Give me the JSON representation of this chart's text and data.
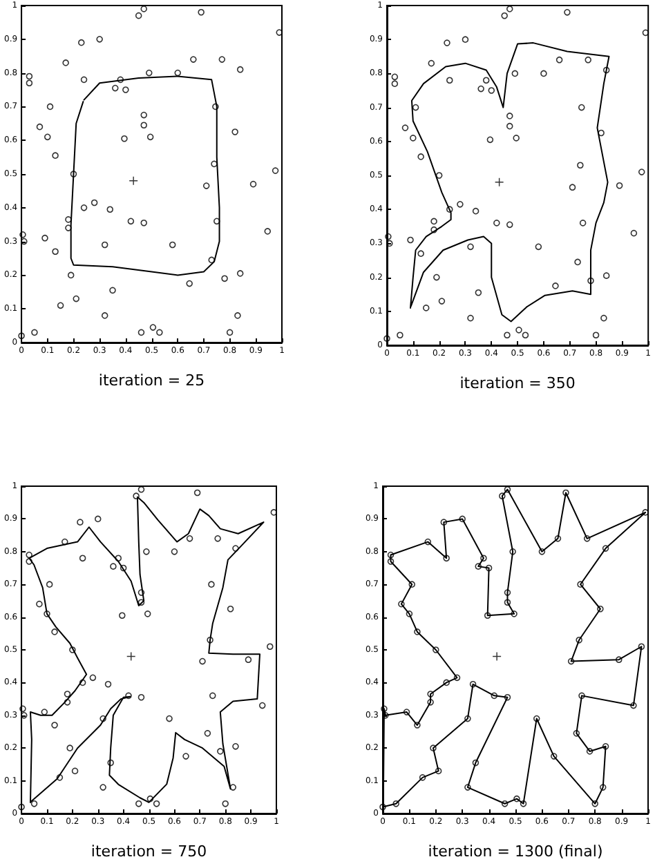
{
  "chart_data": [
    {
      "type": "scatter",
      "xlabel": "iteration = 25",
      "xlim": [
        0,
        1
      ],
      "ylim": [
        0,
        1
      ],
      "xticks": [
        0,
        0.1,
        0.2,
        0.3,
        0.4,
        0.5,
        0.6,
        0.7,
        0.8,
        0.9,
        1
      ],
      "yticks": [
        0,
        0.1,
        0.2,
        0.3,
        0.4,
        0.5,
        0.6,
        0.7,
        0.8,
        0.9,
        1
      ],
      "grid": false,
      "marker": "circle",
      "series": [
        {
          "type": "scatter",
          "color": "#000000",
          "x": [
            0.0,
            0.05,
            0.15,
            0.21,
            0.19,
            0.32,
            0.34,
            0.42,
            0.47,
            0.35,
            0.32,
            0.46,
            0.505,
            0.53,
            0.58,
            0.645,
            0.8,
            0.83,
            0.84,
            0.78,
            0.73,
            0.75,
            0.945,
            0.975,
            0.89,
            0.71,
            0.74,
            0.82,
            0.745,
            0.84,
            0.99,
            0.77,
            0.69,
            0.66,
            0.6,
            0.47,
            0.45,
            0.49,
            0.47,
            0.47,
            0.495,
            0.395,
            0.4,
            0.36,
            0.38,
            0.3,
            0.23,
            0.24,
            0.17,
            0.03,
            0.03,
            0.11,
            0.07,
            0.1,
            0.13,
            0.2,
            0.28,
            0.24,
            0.18,
            0.18,
            0.13,
            0.09,
            0.01,
            0.005
          ],
          "values": [
            0.02,
            0.03,
            0.11,
            0.13,
            0.2,
            0.29,
            0.395,
            0.36,
            0.355,
            0.155,
            0.08,
            0.03,
            0.045,
            0.03,
            0.29,
            0.175,
            0.03,
            0.08,
            0.205,
            0.19,
            0.245,
            0.36,
            0.33,
            0.51,
            0.47,
            0.465,
            0.53,
            0.625,
            0.7,
            0.81,
            0.92,
            0.84,
            0.98,
            0.84,
            0.8,
            0.99,
            0.97,
            0.8,
            0.675,
            0.645,
            0.61,
            0.605,
            0.75,
            0.755,
            0.78,
            0.9,
            0.89,
            0.78,
            0.83,
            0.79,
            0.77,
            0.7,
            0.64,
            0.61,
            0.555,
            0.5,
            0.415,
            0.4,
            0.365,
            0.34,
            0.27,
            0.31,
            0.3,
            0.32
          ]
        },
        {
          "type": "scatter",
          "marker": "cross",
          "color": "#000000",
          "x": [
            0.43
          ],
          "values": [
            0.48
          ]
        },
        {
          "type": "line",
          "marker": "none",
          "color": "#000000",
          "x": [
            0.24,
            0.3,
            0.45,
            0.6,
            0.73,
            0.75,
            0.75,
            0.76,
            0.76,
            0.74,
            0.7,
            0.6,
            0.5,
            0.35,
            0.2,
            0.19,
            0.19,
            0.2,
            0.21,
            0.237
          ],
          "values": [
            0.72,
            0.77,
            0.785,
            0.79,
            0.78,
            0.7,
            0.55,
            0.4,
            0.3,
            0.24,
            0.21,
            0.2,
            0.21,
            0.225,
            0.23,
            0.25,
            0.35,
            0.5,
            0.65,
            0.715
          ]
        }
      ]
    },
    {
      "type": "scatter",
      "xlabel": "iteration = 350",
      "xlim": [
        0,
        1
      ],
      "ylim": [
        0,
        1
      ],
      "xticks": [
        0,
        0.1,
        0.2,
        0.3,
        0.4,
        0.5,
        0.6,
        0.7,
        0.8,
        0.9,
        1
      ],
      "yticks": [
        0,
        0.1,
        0.2,
        0.3,
        0.4,
        0.5,
        0.6,
        0.7,
        0.8,
        0.9,
        1
      ],
      "grid": false,
      "marker": "circle",
      "series": [
        {
          "type": "scatter",
          "color": "#000000",
          "x": [
            0.0,
            0.05,
            0.15,
            0.21,
            0.19,
            0.32,
            0.34,
            0.42,
            0.47,
            0.35,
            0.32,
            0.46,
            0.505,
            0.53,
            0.58,
            0.645,
            0.8,
            0.83,
            0.84,
            0.78,
            0.73,
            0.75,
            0.945,
            0.975,
            0.89,
            0.71,
            0.74,
            0.82,
            0.745,
            0.84,
            0.99,
            0.77,
            0.69,
            0.66,
            0.6,
            0.47,
            0.45,
            0.49,
            0.47,
            0.47,
            0.495,
            0.395,
            0.4,
            0.36,
            0.38,
            0.3,
            0.23,
            0.24,
            0.17,
            0.03,
            0.03,
            0.11,
            0.07,
            0.1,
            0.13,
            0.2,
            0.28,
            0.24,
            0.18,
            0.18,
            0.13,
            0.09,
            0.01,
            0.005
          ],
          "values": [
            0.02,
            0.03,
            0.11,
            0.13,
            0.2,
            0.29,
            0.395,
            0.36,
            0.355,
            0.155,
            0.08,
            0.03,
            0.045,
            0.03,
            0.29,
            0.175,
            0.03,
            0.08,
            0.205,
            0.19,
            0.245,
            0.36,
            0.33,
            0.51,
            0.47,
            0.465,
            0.53,
            0.625,
            0.7,
            0.81,
            0.92,
            0.84,
            0.98,
            0.84,
            0.8,
            0.99,
            0.97,
            0.8,
            0.675,
            0.645,
            0.61,
            0.605,
            0.75,
            0.755,
            0.78,
            0.9,
            0.89,
            0.78,
            0.83,
            0.79,
            0.77,
            0.7,
            0.64,
            0.61,
            0.555,
            0.5,
            0.415,
            0.4,
            0.365,
            0.34,
            0.27,
            0.31,
            0.3,
            0.32
          ]
        },
        {
          "type": "scatter",
          "marker": "cross",
          "color": "#000000",
          "x": [
            0.43
          ],
          "values": [
            0.48
          ]
        },
        {
          "type": "line",
          "marker": "none",
          "color": "#000000",
          "x": [
            0.09,
            0.1,
            0.11,
            0.15,
            0.21,
            0.245,
            0.245,
            0.21,
            0.155,
            0.1,
            0.095,
            0.14,
            0.225,
            0.3,
            0.38,
            0.42,
            0.445,
            0.46,
            0.5,
            0.56,
            0.69,
            0.85,
            0.83,
            0.805,
            0.83,
            0.845,
            0.83,
            0.8,
            0.78,
            0.78,
            0.71,
            0.605,
            0.535,
            0.475,
            0.44,
            0.4,
            0.4,
            0.37,
            0.31,
            0.215,
            0.14,
            0.092
          ],
          "values": [
            0.11,
            0.2,
            0.28,
            0.32,
            0.35,
            0.37,
            0.39,
            0.45,
            0.57,
            0.66,
            0.72,
            0.77,
            0.82,
            0.83,
            0.81,
            0.76,
            0.7,
            0.8,
            0.887,
            0.89,
            0.865,
            0.85,
            0.77,
            0.64,
            0.54,
            0.48,
            0.42,
            0.36,
            0.28,
            0.15,
            0.16,
            0.147,
            0.113,
            0.07,
            0.09,
            0.2,
            0.3,
            0.32,
            0.31,
            0.28,
            0.215,
            0.115
          ]
        }
      ]
    },
    {
      "type": "scatter",
      "xlabel": "iteration = 750",
      "xlim": [
        0,
        1
      ],
      "ylim": [
        0,
        1
      ],
      "xticks": [
        0,
        0.1,
        0.2,
        0.3,
        0.4,
        0.5,
        0.6,
        0.7,
        0.8,
        0.9,
        1
      ],
      "yticks": [
        0,
        0.1,
        0.2,
        0.3,
        0.4,
        0.5,
        0.6,
        0.7,
        0.8,
        0.9,
        1
      ],
      "grid": false,
      "marker": "circle",
      "series": [
        {
          "type": "scatter",
          "color": "#000000",
          "x": [
            0.0,
            0.05,
            0.15,
            0.21,
            0.19,
            0.32,
            0.34,
            0.42,
            0.47,
            0.35,
            0.32,
            0.46,
            0.505,
            0.53,
            0.58,
            0.645,
            0.8,
            0.83,
            0.84,
            0.78,
            0.73,
            0.75,
            0.945,
            0.975,
            0.89,
            0.71,
            0.74,
            0.82,
            0.745,
            0.84,
            0.99,
            0.77,
            0.69,
            0.66,
            0.6,
            0.47,
            0.45,
            0.49,
            0.47,
            0.47,
            0.495,
            0.395,
            0.4,
            0.36,
            0.38,
            0.3,
            0.23,
            0.24,
            0.17,
            0.03,
            0.03,
            0.11,
            0.07,
            0.1,
            0.13,
            0.2,
            0.28,
            0.24,
            0.18,
            0.18,
            0.13,
            0.09,
            0.01,
            0.005
          ],
          "values": [
            0.02,
            0.03,
            0.11,
            0.13,
            0.2,
            0.29,
            0.395,
            0.36,
            0.355,
            0.155,
            0.08,
            0.03,
            0.045,
            0.03,
            0.29,
            0.175,
            0.03,
            0.08,
            0.205,
            0.19,
            0.245,
            0.36,
            0.33,
            0.51,
            0.47,
            0.465,
            0.53,
            0.625,
            0.7,
            0.81,
            0.92,
            0.84,
            0.98,
            0.84,
            0.8,
            0.99,
            0.97,
            0.8,
            0.675,
            0.645,
            0.61,
            0.605,
            0.75,
            0.755,
            0.78,
            0.9,
            0.89,
            0.78,
            0.83,
            0.79,
            0.77,
            0.7,
            0.64,
            0.61,
            0.555,
            0.5,
            0.415,
            0.4,
            0.365,
            0.34,
            0.27,
            0.31,
            0.3,
            0.32
          ]
        },
        {
          "type": "scatter",
          "marker": "cross",
          "color": "#000000",
          "x": [
            0.43
          ],
          "values": [
            0.48
          ]
        },
        {
          "type": "line",
          "marker": "none",
          "color": "#000000",
          "x": [
            0.035,
            0.04,
            0.035,
            0.075,
            0.12,
            0.17,
            0.21,
            0.255,
            0.22,
            0.19,
            0.135,
            0.1,
            0.083,
            0.049,
            0.03,
            0.1,
            0.22,
            0.265,
            0.31,
            0.38,
            0.43,
            0.46,
            0.48,
            0.465,
            0.46,
            0.455,
            0.48,
            0.535,
            0.61,
            0.655,
            0.7,
            0.735,
            0.78,
            0.85,
            0.95,
            0.865,
            0.81,
            0.79,
            0.75,
            0.74,
            0.735,
            0.83,
            0.935,
            0.925,
            0.83,
            0.78,
            0.79,
            0.82,
            0.795,
            0.71,
            0.64,
            0.605,
            0.595,
            0.57,
            0.5,
            0.465,
            0.38,
            0.345,
            0.35,
            0.36,
            0.4,
            0.427,
            0.39,
            0.35,
            0.31,
            0.22,
            0.14,
            0.038
          ],
          "values": [
            0.034,
            0.226,
            0.31,
            0.3,
            0.3,
            0.34,
            0.375,
            0.425,
            0.475,
            0.52,
            0.57,
            0.61,
            0.69,
            0.76,
            0.78,
            0.81,
            0.83,
            0.875,
            0.83,
            0.77,
            0.71,
            0.635,
            0.65,
            0.73,
            0.83,
            0.967,
            0.95,
            0.897,
            0.83,
            0.855,
            0.93,
            0.91,
            0.87,
            0.855,
            0.89,
            0.82,
            0.775,
            0.69,
            0.58,
            0.53,
            0.49,
            0.487,
            0.487,
            0.35,
            0.343,
            0.31,
            0.213,
            0.075,
            0.144,
            0.2,
            0.226,
            0.247,
            0.17,
            0.09,
            0.034,
            0.048,
            0.089,
            0.117,
            0.2,
            0.3,
            0.355,
            0.357,
            0.35,
            0.32,
            0.27,
            0.2,
            0.106,
            0.037
          ]
        }
      ]
    },
    {
      "type": "scatter",
      "xlabel": "iteration = 1300 (final)",
      "xlim": [
        0,
        1
      ],
      "ylim": [
        0,
        1
      ],
      "xticks": [
        0,
        0.1,
        0.2,
        0.3,
        0.4,
        0.5,
        0.6,
        0.7,
        0.8,
        0.9,
        1
      ],
      "yticks": [
        0,
        0.1,
        0.2,
        0.3,
        0.4,
        0.5,
        0.6,
        0.7,
        0.8,
        0.9,
        1
      ],
      "grid": false,
      "marker": "circle",
      "series": [
        {
          "type": "scatter",
          "color": "#000000",
          "x": [
            0.0,
            0.05,
            0.15,
            0.21,
            0.19,
            0.32,
            0.34,
            0.42,
            0.47,
            0.35,
            0.32,
            0.46,
            0.505,
            0.53,
            0.58,
            0.645,
            0.8,
            0.83,
            0.84,
            0.78,
            0.73,
            0.75,
            0.945,
            0.975,
            0.89,
            0.71,
            0.74,
            0.82,
            0.745,
            0.84,
            0.99,
            0.77,
            0.69,
            0.66,
            0.6,
            0.47,
            0.45,
            0.49,
            0.47,
            0.47,
            0.495,
            0.395,
            0.4,
            0.36,
            0.38,
            0.3,
            0.23,
            0.24,
            0.17,
            0.03,
            0.03,
            0.11,
            0.07,
            0.1,
            0.13,
            0.2,
            0.28,
            0.24,
            0.18,
            0.18,
            0.13,
            0.09,
            0.01,
            0.005
          ],
          "values": [
            0.02,
            0.03,
            0.11,
            0.13,
            0.2,
            0.29,
            0.395,
            0.36,
            0.355,
            0.155,
            0.08,
            0.03,
            0.045,
            0.03,
            0.29,
            0.175,
            0.03,
            0.08,
            0.205,
            0.19,
            0.245,
            0.36,
            0.33,
            0.51,
            0.47,
            0.465,
            0.53,
            0.625,
            0.7,
            0.81,
            0.92,
            0.84,
            0.98,
            0.84,
            0.8,
            0.99,
            0.97,
            0.8,
            0.675,
            0.645,
            0.61,
            0.605,
            0.75,
            0.755,
            0.78,
            0.9,
            0.89,
            0.78,
            0.83,
            0.79,
            0.77,
            0.7,
            0.64,
            0.61,
            0.555,
            0.5,
            0.415,
            0.4,
            0.365,
            0.34,
            0.27,
            0.31,
            0.3,
            0.32
          ]
        },
        {
          "type": "scatter",
          "marker": "cross",
          "color": "#000000",
          "x": [
            0.43
          ],
          "values": [
            0.48
          ]
        },
        {
          "type": "line",
          "marker": "none",
          "color": "#000000",
          "x": [
            0.0,
            0.05,
            0.15,
            0.21,
            0.19,
            0.32,
            0.34,
            0.42,
            0.47,
            0.35,
            0.32,
            0.46,
            0.505,
            0.53,
            0.58,
            0.645,
            0.8,
            0.83,
            0.84,
            0.78,
            0.73,
            0.75,
            0.945,
            0.975,
            0.89,
            0.71,
            0.74,
            0.82,
            0.745,
            0.84,
            0.99,
            0.77,
            0.69,
            0.66,
            0.6,
            0.47,
            0.45,
            0.49,
            0.47,
            0.47,
            0.495,
            0.395,
            0.4,
            0.36,
            0.38,
            0.3,
            0.23,
            0.24,
            0.17,
            0.03,
            0.03,
            0.11,
            0.07,
            0.1,
            0.13,
            0.2,
            0.28,
            0.24,
            0.18,
            0.18,
            0.13,
            0.09,
            0.01,
            0.005,
            0.002
          ],
          "values": [
            0.02,
            0.03,
            0.11,
            0.13,
            0.2,
            0.29,
            0.395,
            0.36,
            0.355,
            0.155,
            0.08,
            0.03,
            0.045,
            0.03,
            0.29,
            0.175,
            0.03,
            0.08,
            0.205,
            0.19,
            0.245,
            0.36,
            0.33,
            0.51,
            0.47,
            0.465,
            0.53,
            0.625,
            0.7,
            0.81,
            0.92,
            0.84,
            0.98,
            0.84,
            0.8,
            0.99,
            0.97,
            0.8,
            0.675,
            0.645,
            0.61,
            0.605,
            0.75,
            0.755,
            0.78,
            0.9,
            0.89,
            0.78,
            0.83,
            0.79,
            0.77,
            0.7,
            0.64,
            0.61,
            0.555,
            0.5,
            0.415,
            0.4,
            0.365,
            0.34,
            0.27,
            0.31,
            0.3,
            0.32,
            0.025
          ]
        }
      ]
    }
  ]
}
